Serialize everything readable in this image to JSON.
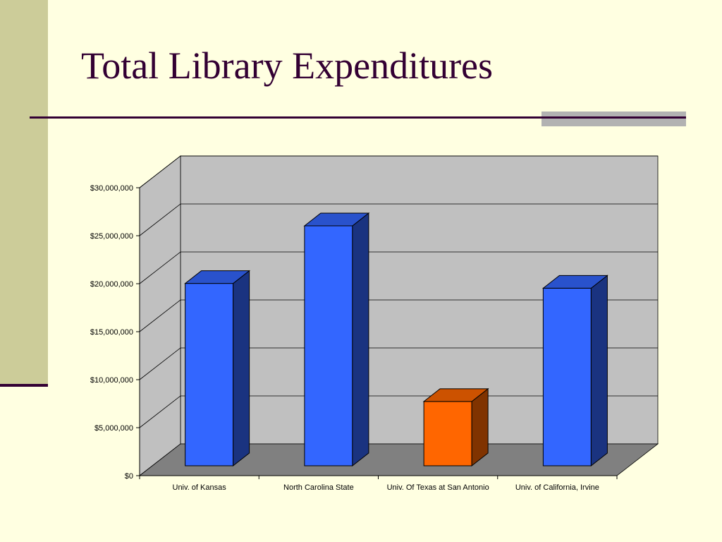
{
  "slide": {
    "title": "Total Library Expenditures"
  },
  "colors": {
    "background": "#FFFFE1",
    "accent_band": "#CCCC99",
    "title_text": "#330033",
    "plot_wall": "#C0C0C0",
    "plot_floor": "#808080",
    "bar_front": "#3366FF",
    "bar_side": "#1A3380",
    "bar_top": "#2952CC",
    "highlight_front": "#FF6600",
    "highlight_side": "#803300",
    "highlight_top": "#CC5200"
  },
  "chart_data": {
    "type": "bar",
    "style": "3d-column",
    "title": "",
    "xlabel": "",
    "ylabel": "",
    "categories": [
      "Univ. of Kansas",
      "North Carolina State",
      "Univ. Of Texas at San Antonio",
      "Univ. of California, Irvine"
    ],
    "values": [
      19000000,
      25000000,
      6700000,
      18500000
    ],
    "highlighted_category": "Univ. Of Texas at San Antonio",
    "ylim": [
      0,
      30000000
    ],
    "yticks": [
      0,
      5000000,
      10000000,
      15000000,
      20000000,
      25000000,
      30000000
    ],
    "ytick_labels": [
      "$0",
      "$5,000,000",
      "$10,000,000",
      "$15,000,000",
      "$20,000,000",
      "$25,000,000",
      "$30,000,000"
    ],
    "grid": true,
    "legend": "none"
  }
}
